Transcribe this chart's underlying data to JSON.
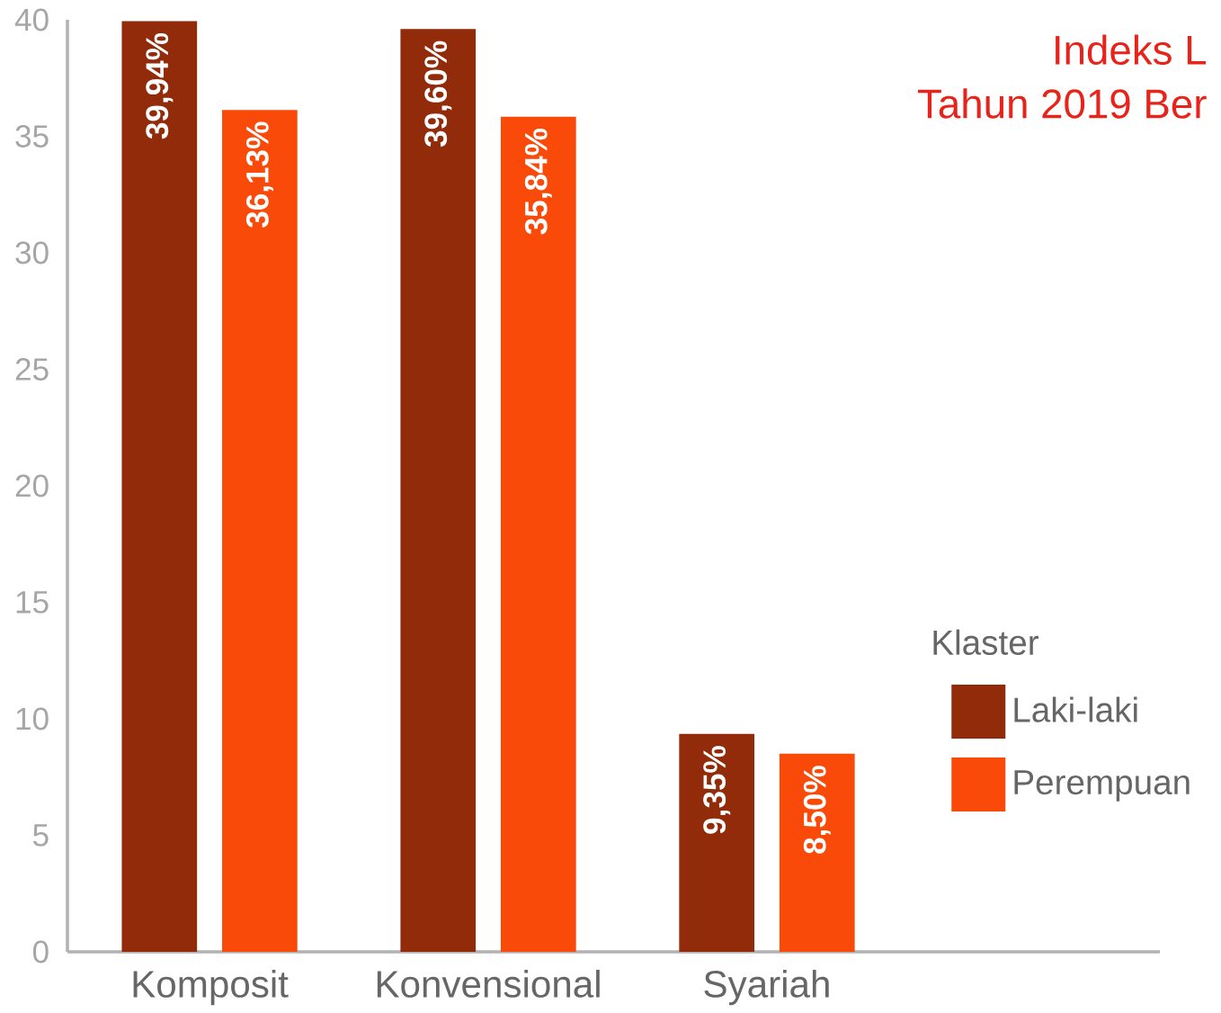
{
  "chart_data": {
    "type": "bar",
    "title": "Indeks L",
    "subtitle": "Tahun 2019 Ber",
    "categories": [
      "Komposit",
      "Konvensional",
      "Syariah"
    ],
    "series": [
      {
        "name": "Laki-laki",
        "color": "#922b0a",
        "values": [
          39.94,
          39.6,
          9.35
        ],
        "value_labels": [
          "39,94%",
          "39,60%",
          "9,35%"
        ]
      },
      {
        "name": "Perempuan",
        "color": "#f94a0a",
        "values": [
          36.13,
          35.84,
          8.5
        ],
        "value_labels": [
          "36,13%",
          "35,84%",
          "8,50%"
        ]
      }
    ],
    "ylim": [
      0,
      40
    ],
    "yticks": [
      0,
      5,
      10,
      15,
      20,
      25,
      30,
      35,
      40
    ],
    "legend": "right",
    "legend_title": "Klaster",
    "grid": false
  }
}
